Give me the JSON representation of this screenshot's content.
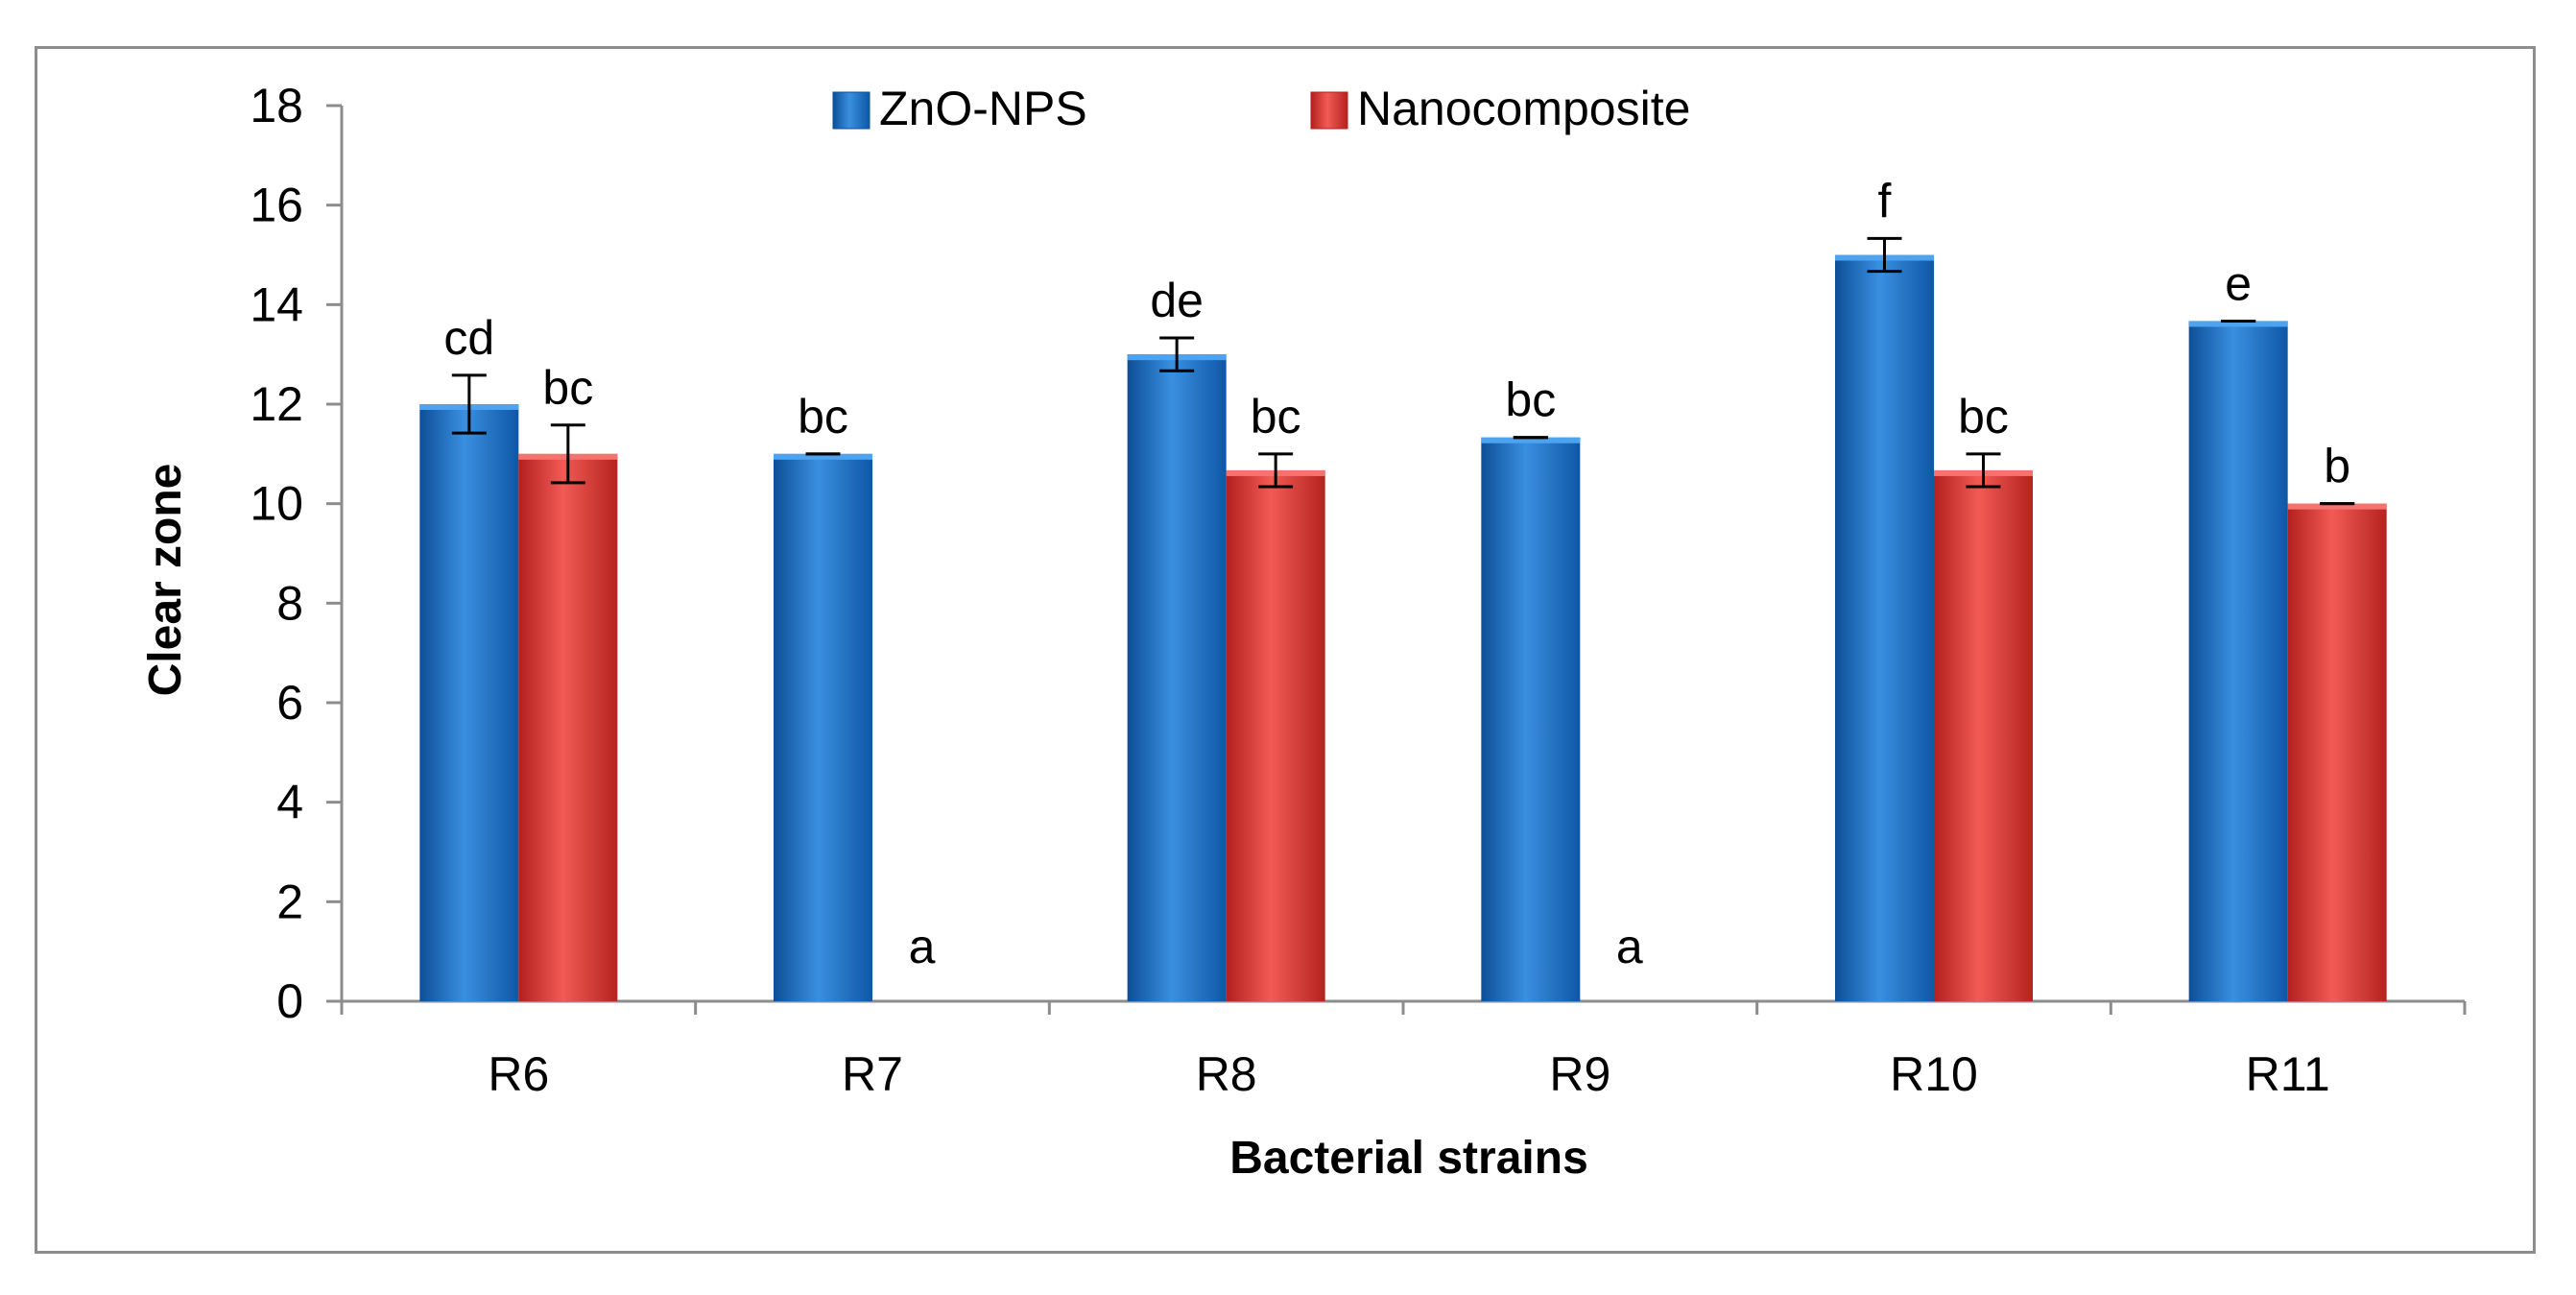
{
  "chart_data": {
    "type": "bar",
    "title": "",
    "xlabel": "Bacterial strains",
    "ylabel": "Clear zone",
    "ylim": [
      0,
      18
    ],
    "yticks": [
      0,
      2,
      4,
      6,
      8,
      10,
      12,
      14,
      16,
      18
    ],
    "categories": [
      "R6",
      "R7",
      "R8",
      "R9",
      "R10",
      "R11"
    ],
    "legend_position": "top-center",
    "series": [
      {
        "name": "ZnO-NPS",
        "color": "#1f6fc4",
        "values": [
          12,
          11,
          13,
          11.33,
          15,
          13.67
        ],
        "errors": [
          0.58,
          0,
          0.33,
          0,
          0.33,
          0
        ],
        "letters": [
          "cd",
          "bc",
          "de",
          "bc",
          "f",
          "e"
        ]
      },
      {
        "name": "Nanocomposite",
        "color": "#e03a36",
        "values": [
          11,
          0,
          10.67,
          0,
          10.67,
          10
        ],
        "errors": [
          0.58,
          0,
          0.33,
          0,
          0.33,
          0
        ],
        "letters": [
          "bc",
          "a",
          "bc",
          "a",
          "bc",
          "b"
        ]
      }
    ]
  }
}
